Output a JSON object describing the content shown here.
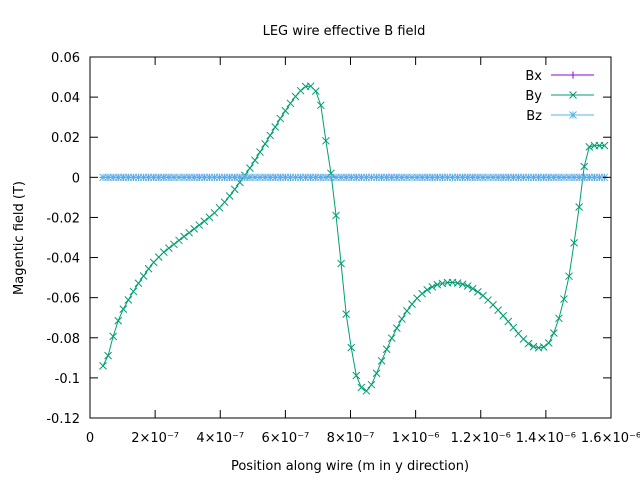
{
  "chart_data": {
    "type": "line",
    "title": "LEG wire effective B field",
    "xlabel": "Position along wire (m in y direction)",
    "ylabel": "Magentic field (T)",
    "xlim": [
      0,
      1.6e-06
    ],
    "ylim": [
      -0.12,
      0.06
    ],
    "grid": false,
    "legend_position": "top-right",
    "x_ticks": [
      {
        "value": 0,
        "label": "0"
      },
      {
        "value": 2e-07,
        "label": "2×10⁻⁷"
      },
      {
        "value": 4e-07,
        "label": "4×10⁻⁷"
      },
      {
        "value": 6e-07,
        "label": "6×10⁻⁷"
      },
      {
        "value": 8e-07,
        "label": "8×10⁻⁷"
      },
      {
        "value": 1e-06,
        "label": "1×10⁻⁶"
      },
      {
        "value": 1.2e-06,
        "label": "1.2×10⁻⁶"
      },
      {
        "value": 1.4e-06,
        "label": "1.4×10⁻⁶"
      },
      {
        "value": 1.6e-06,
        "label": "1.6×10⁻⁶"
      }
    ],
    "y_ticks": [
      {
        "value": 0.06,
        "label": "0.06"
      },
      {
        "value": 0.04,
        "label": "0.04"
      },
      {
        "value": 0.02,
        "label": "0.02"
      },
      {
        "value": 0,
        "label": "0"
      },
      {
        "value": -0.02,
        "label": "-0.02"
      },
      {
        "value": -0.04,
        "label": "-0.04"
      },
      {
        "value": -0.06,
        "label": "-0.06"
      },
      {
        "value": -0.08,
        "label": "-0.08"
      },
      {
        "value": -0.1,
        "label": "-0.1"
      },
      {
        "value": -0.12,
        "label": "-0.12"
      }
    ],
    "x_range": {
      "start": 4e-08,
      "end": 1.58e-06,
      "points": 100
    },
    "series": [
      {
        "name": "Bx",
        "color": "#9400d3",
        "marker": "plus",
        "values": [
          0,
          0,
          0,
          0,
          0,
          0,
          0,
          0,
          0,
          0,
          0,
          0,
          0,
          0,
          0,
          0,
          0,
          0,
          0,
          0,
          0,
          0,
          0,
          0,
          0,
          0,
          0,
          0,
          0,
          0,
          0,
          0,
          0,
          0,
          0,
          0,
          0,
          0,
          0,
          0,
          0,
          0,
          0,
          0,
          0,
          0,
          0,
          0,
          0,
          0,
          0,
          0,
          0,
          0,
          0,
          0,
          0,
          0,
          0,
          0,
          0,
          0,
          0,
          0,
          0,
          0,
          0,
          0,
          0,
          0,
          0,
          0,
          0,
          0,
          0,
          0,
          0,
          0,
          0,
          0,
          0,
          0,
          0,
          0,
          0,
          0,
          0,
          0,
          0,
          0,
          0,
          0,
          0,
          0,
          0,
          0,
          0,
          0,
          0,
          0
        ]
      },
      {
        "name": "By",
        "color": "#009e73",
        "marker": "cross",
        "values": [
          -0.094,
          -0.0889,
          -0.0793,
          -0.0715,
          -0.0657,
          -0.0611,
          -0.0569,
          -0.0528,
          -0.0492,
          -0.0456,
          -0.0424,
          -0.0398,
          -0.0373,
          -0.0353,
          -0.0334,
          -0.0314,
          -0.0295,
          -0.0276,
          -0.0257,
          -0.0238,
          -0.0219,
          -0.0199,
          -0.0177,
          -0.0152,
          -0.0124,
          -0.0093,
          -0.006,
          -0.0025,
          0.001,
          0.0046,
          0.0085,
          0.0126,
          0.0167,
          0.0209,
          0.0251,
          0.0293,
          0.0332,
          0.0369,
          0.0403,
          0.0432,
          0.0453,
          0.0455,
          0.043,
          0.0359,
          0.0182,
          0.002,
          -0.019,
          -0.043,
          -0.0682,
          -0.0849,
          -0.0988,
          -0.1048,
          -0.1065,
          -0.1034,
          -0.0977,
          -0.0915,
          -0.0857,
          -0.0802,
          -0.0752,
          -0.0706,
          -0.0666,
          -0.0632,
          -0.0603,
          -0.058,
          -0.0561,
          -0.0546,
          -0.0535,
          -0.0529,
          -0.0525,
          -0.0524,
          -0.0527,
          -0.0533,
          -0.0542,
          -0.0555,
          -0.0571,
          -0.059,
          -0.0612,
          -0.0636,
          -0.0662,
          -0.069,
          -0.0719,
          -0.0749,
          -0.0779,
          -0.0806,
          -0.0829,
          -0.0844,
          -0.085,
          -0.0846,
          -0.0826,
          -0.0776,
          -0.0703,
          -0.0607,
          -0.0493,
          -0.0327,
          -0.0148,
          0.0054,
          0.0152,
          0.0158,
          0.0158,
          0.0158
        ]
      },
      {
        "name": "Bz",
        "color": "#56b4e9",
        "marker": "star",
        "values": [
          0,
          0,
          0,
          0,
          0,
          0,
          0,
          0,
          0,
          0,
          0,
          0,
          0,
          0,
          0,
          0,
          0,
          0,
          0,
          0,
          0,
          0,
          0,
          0,
          0,
          0,
          0,
          0,
          0,
          0,
          0,
          0,
          0,
          0,
          0,
          0,
          0,
          0,
          0,
          0,
          0,
          0,
          0,
          0,
          0,
          0,
          0,
          0,
          0,
          0,
          0,
          0,
          0,
          0,
          0,
          0,
          0,
          0,
          0,
          0,
          0,
          0,
          0,
          0,
          0,
          0,
          0,
          0,
          0,
          0,
          0,
          0,
          0,
          0,
          0,
          0,
          0,
          0,
          0,
          0,
          0,
          0,
          0,
          0,
          0,
          0,
          0,
          0,
          0,
          0,
          0,
          0,
          0,
          0,
          0,
          0,
          0,
          0,
          0,
          0
        ]
      }
    ]
  }
}
